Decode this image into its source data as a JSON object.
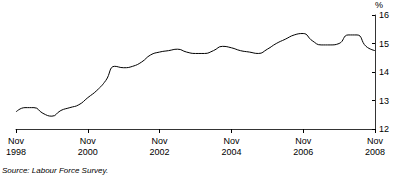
{
  "chart_data": {
    "type": "line",
    "ylabel": "%",
    "source": "Source: Labour Force Survey.",
    "categories": [
      "Nov\n1998",
      null,
      null,
      null,
      null,
      null,
      null,
      null,
      "Nov\n2000",
      null,
      null,
      null,
      null,
      null,
      null,
      null,
      "Nov\n2002",
      null,
      null,
      null,
      null,
      null,
      null,
      null,
      "Nov\n2004",
      null,
      null,
      null,
      null,
      null,
      null,
      null,
      "Nov\n2006",
      null,
      null,
      null,
      null,
      null,
      null,
      null,
      "Nov\n2008"
    ],
    "values": [
      12.6,
      12.75,
      12.75,
      12.55,
      12.45,
      12.65,
      12.75,
      12.85,
      13.1,
      13.35,
      13.7,
      14.2,
      14.15,
      14.2,
      14.35,
      14.6,
      14.7,
      14.75,
      14.8,
      14.7,
      14.65,
      14.65,
      14.75,
      14.9,
      14.85,
      14.75,
      14.7,
      14.65,
      14.8,
      15.0,
      15.15,
      15.3,
      15.35,
      15.1,
      14.95,
      14.95,
      15.0,
      15.3,
      15.3,
      14.9,
      14.75
    ],
    "color": "#000000",
    "ylim": [
      12,
      16
    ],
    "yticks": [
      12,
      13,
      14,
      15,
      16
    ],
    "grid": false
  }
}
